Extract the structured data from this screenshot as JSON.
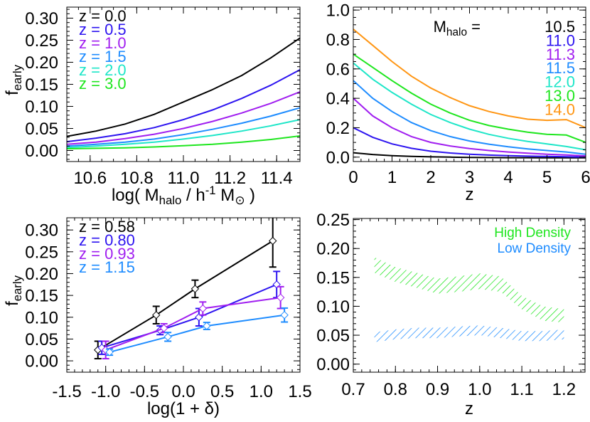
{
  "colors": {
    "black": "#000000",
    "blue": "#2d14f0",
    "purple": "#a01ef0",
    "lightblue": "#1e8cff",
    "cyan": "#1ee6c8",
    "green": "#1ee61e",
    "orange": "#ff9614"
  },
  "chart_data": [
    {
      "type": "line",
      "ylabel": {
        "main": "f",
        "sub": "early"
      },
      "xlabel": [
        {
          "t": "log( M",
          "s": ""
        },
        {
          "t": "halo",
          "s": "sub"
        },
        {
          "t": " / h",
          "s": ""
        },
        {
          "t": "-1",
          "s": "sup"
        },
        {
          "t": " M",
          "s": ""
        },
        {
          "t": "⊙",
          "s": "sub"
        },
        {
          "t": " )",
          "s": ""
        }
      ],
      "xlim": [
        10.5,
        11.5
      ],
      "ylim": [
        -0.025,
        0.325
      ],
      "xticks": [
        "10.6",
        "10.8",
        "11.0",
        "11.2",
        "11.4"
      ],
      "yticks": [
        "0.00",
        "0.05",
        "0.10",
        "0.15",
        "0.20",
        "0.25",
        "0.30"
      ],
      "legend": "top-left",
      "x": [
        10.5,
        10.625,
        10.75,
        10.875,
        11.0,
        11.125,
        11.25,
        11.375,
        11.5
      ],
      "series": [
        {
          "name": "z = 0.0",
          "color": "black",
          "values": [
            0.032,
            0.044,
            0.06,
            0.082,
            0.11,
            0.138,
            0.17,
            0.21,
            0.255
          ]
        },
        {
          "name": "z = 0.5",
          "color": "blue",
          "values": [
            0.02,
            0.028,
            0.038,
            0.052,
            0.07,
            0.092,
            0.118,
            0.148,
            0.183
          ]
        },
        {
          "name": "z = 1.0",
          "color": "purple",
          "values": [
            0.014,
            0.019,
            0.027,
            0.037,
            0.05,
            0.066,
            0.085,
            0.107,
            0.133
          ]
        },
        {
          "name": "z = 1.5",
          "color": "lightblue",
          "values": [
            0.01,
            0.014,
            0.019,
            0.026,
            0.036,
            0.048,
            0.062,
            0.078,
            0.097
          ]
        },
        {
          "name": "z = 2.0",
          "color": "cyan",
          "values": [
            0.007,
            0.01,
            0.014,
            0.019,
            0.026,
            0.034,
            0.044,
            0.056,
            0.07
          ]
        },
        {
          "name": "z = 3.0",
          "color": "green",
          "values": [
            0.004,
            0.005,
            0.006,
            0.008,
            0.011,
            0.014,
            0.019,
            0.025,
            0.033
          ]
        }
      ]
    },
    {
      "type": "line",
      "xlabel": [
        {
          "t": "z",
          "s": ""
        }
      ],
      "xlim": [
        0,
        6
      ],
      "ylim": [
        -0.03,
        1.02
      ],
      "xticks": [
        "0",
        "1",
        "2",
        "3",
        "4",
        "5",
        "6"
      ],
      "yticks": [
        "0.0",
        "0.2",
        "0.4",
        "0.6",
        "0.8",
        "1.0"
      ],
      "legend": "top-right",
      "legend_title": [
        {
          "t": "M",
          "s": ""
        },
        {
          "t": "halo",
          "s": "sub"
        },
        {
          "t": " =",
          "s": ""
        }
      ],
      "x": [
        0,
        0.5,
        1,
        1.5,
        2,
        2.5,
        3,
        3.5,
        4,
        4.5,
        5,
        5.5,
        6
      ],
      "series": [
        {
          "name": "10.5",
          "color": "black",
          "values": [
            0.03,
            0.018,
            0.01,
            0.005,
            0.002,
            0.0,
            -0.002,
            -0.003,
            -0.004,
            -0.004,
            -0.005,
            -0.005,
            -0.005
          ]
        },
        {
          "name": "11.0",
          "color": "blue",
          "values": [
            0.2,
            0.135,
            0.09,
            0.06,
            0.04,
            0.028,
            0.02,
            0.014,
            0.01,
            0.007,
            0.005,
            0.003,
            0.0
          ]
        },
        {
          "name": "11.3",
          "color": "purple",
          "values": [
            0.4,
            0.28,
            0.2,
            0.14,
            0.1,
            0.076,
            0.058,
            0.045,
            0.035,
            0.027,
            0.02,
            0.015,
            0.008
          ]
        },
        {
          "name": "11.5",
          "color": "lightblue",
          "values": [
            0.52,
            0.4,
            0.31,
            0.235,
            0.18,
            0.14,
            0.11,
            0.088,
            0.07,
            0.056,
            0.045,
            0.035,
            0.02
          ]
        },
        {
          "name": "12.0",
          "color": "cyan",
          "values": [
            0.64,
            0.53,
            0.44,
            0.36,
            0.29,
            0.235,
            0.19,
            0.155,
            0.128,
            0.107,
            0.09,
            0.072,
            0.05
          ]
        },
        {
          "name": "13.0",
          "color": "green",
          "values": [
            0.7,
            0.61,
            0.52,
            0.435,
            0.36,
            0.3,
            0.25,
            0.215,
            0.19,
            0.17,
            0.155,
            0.15,
            0.1
          ]
        },
        {
          "name": "14.0",
          "color": "orange",
          "values": [
            0.87,
            0.76,
            0.65,
            0.55,
            0.47,
            0.405,
            0.35,
            0.31,
            0.28,
            0.258,
            0.25,
            0.255,
            0.2
          ]
        }
      ]
    },
    {
      "type": "scatter",
      "ylabel": {
        "main": "f",
        "sub": "early"
      },
      "xlabel": [
        {
          "t": "log(1 + δ)",
          "s": ""
        }
      ],
      "xlim": [
        -1.5,
        1.5
      ],
      "ylim": [
        -0.026,
        0.328
      ],
      "xticks": [
        "-1.5",
        "-1.0",
        "-0.5",
        "0.0",
        "0.5",
        "1.0",
        "1.5"
      ],
      "yticks": [
        "0.00",
        "0.05",
        "0.10",
        "0.15",
        "0.20",
        "0.25",
        "0.30"
      ],
      "legend": "top-left",
      "series": [
        {
          "name": "z = 0.58",
          "color": "black",
          "x": [
            -1.1,
            -0.35,
            0.15,
            1.15
          ],
          "values": [
            0.025,
            0.105,
            0.165,
            0.275
          ],
          "errors": [
            0.02,
            0.02,
            0.02,
            0.06
          ]
        },
        {
          "name": "z = 0.80",
          "color": "blue",
          "x": [
            -1.05,
            -0.3,
            0.2,
            1.2
          ],
          "values": [
            0.03,
            0.07,
            0.1,
            0.175
          ],
          "errors": [
            0.015,
            0.01,
            0.02,
            0.03
          ]
        },
        {
          "name": "z = 0.93",
          "color": "purple",
          "x": [
            -1.0,
            -0.25,
            0.25,
            1.25
          ],
          "values": [
            0.025,
            0.075,
            0.12,
            0.145
          ],
          "errors": [
            0.02,
            0.01,
            0.015,
            0.025
          ]
        },
        {
          "name": "z = 1.15",
          "color": "lightblue",
          "x": [
            -0.95,
            -0.2,
            0.3,
            1.3
          ],
          "values": [
            0.02,
            0.055,
            0.08,
            0.105
          ],
          "errors": [
            0.007,
            0.01,
            0.008,
            0.016
          ]
        }
      ]
    },
    {
      "type": "area",
      "xlabel": [
        {
          "t": "z",
          "s": ""
        }
      ],
      "xlim": [
        0.7,
        1.25
      ],
      "ylim": [
        -0.014,
        0.252
      ],
      "xticks": [
        "0.7",
        "0.8",
        "0.9",
        "1.0",
        "1.1",
        "1.2"
      ],
      "yticks": [
        "0.00",
        "0.05",
        "0.10",
        "0.15",
        "0.20",
        "0.25"
      ],
      "legend": "top-right",
      "x": [
        0.75,
        0.8,
        0.85,
        0.9,
        0.95,
        1.0,
        1.05,
        1.1,
        1.15,
        1.2
      ],
      "series": [
        {
          "name": "High Density",
          "color": "green",
          "upper": [
            0.185,
            0.168,
            0.158,
            0.148,
            0.152,
            0.157,
            0.152,
            0.118,
            0.1,
            0.095
          ],
          "lower": [
            0.158,
            0.142,
            0.132,
            0.122,
            0.125,
            0.13,
            0.125,
            0.095,
            0.075,
            0.072
          ]
        },
        {
          "name": "Low Density",
          "color": "lightblue",
          "upper": [
            0.055,
            0.06,
            0.063,
            0.063,
            0.065,
            0.067,
            0.063,
            0.057,
            0.057,
            0.06
          ],
          "lower": [
            0.038,
            0.043,
            0.045,
            0.045,
            0.048,
            0.05,
            0.045,
            0.04,
            0.04,
            0.043
          ]
        }
      ]
    }
  ]
}
